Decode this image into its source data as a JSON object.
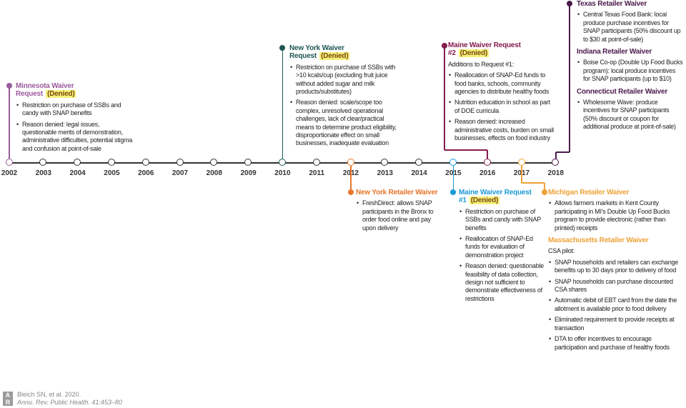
{
  "colors": {
    "minnesota": "#9b5b9e",
    "new_york": "#1e5753",
    "maine2": "#861c4e",
    "texas": "#4b1a4b",
    "ny_retailer": "#e8762b",
    "maine1": "#1b9ad6",
    "michigan": "#eea237",
    "denied_highlight": "#f6f07a"
  },
  "years": [
    "2002",
    "2003",
    "2004",
    "2005",
    "2006",
    "2007",
    "2008",
    "2009",
    "2010",
    "2011",
    "2012",
    "2013",
    "2014",
    "2015",
    "2016",
    "2017",
    "2018"
  ],
  "events": {
    "minnesota": {
      "sections": [
        {
          "title": "Minnesota Waiver Request",
          "denied": "(Denied)",
          "bullets": [
            "Restriction on purchase of SSBs and candy with SNAP benefits",
            "Reason denied: legal issues, questionable merits of demonstration, administrative difficulties, potential stigma and confusion at point-of-sale"
          ]
        }
      ]
    },
    "new_york": {
      "sections": [
        {
          "title": "New York Waiver Request",
          "denied": "(Denied)",
          "bullets": [
            "Restriction on purchase of SSBs with >10 kcals/cup (excluding fruit juice without added sugar and milk products/substitutes)",
            "Reason denied: scale/scope too complex, unresolved operational challenges, lack of clear/practical means to determine product eligibility, disproportionate effect on small businesses, inadequate evaluation"
          ]
        }
      ]
    },
    "maine2": {
      "sections": [
        {
          "title": "Maine Waiver Request #2",
          "denied": "(Denied)",
          "intro": "Additions to Request #1:",
          "bullets": [
            "Reallocation of SNAP-Ed funds to food banks, schools, community agencies to distribute healthy foods",
            "Nutrition education in school as part of DOE curricula",
            "Reason denied: increased administrative costs, burden on small businesses, effects on food industry"
          ]
        }
      ]
    },
    "texas": {
      "sections": [
        {
          "title": "Texas Retailer Waiver",
          "bullets": [
            "Central Texas Food Bank: local produce purchase incentives for SNAP participants (50% discount up to $30 at point-of-sale)"
          ]
        },
        {
          "title": "Indiana Retailer Waiver",
          "bullets": [
            "Boise Co-op (Double Up Food Bucks program): local produce incentives for SNAP participants (up to $10)"
          ]
        },
        {
          "title": "Connecticut Retailer Waiver",
          "bullets": [
            "Wholesome Wave: produce incentives for SNAP participants (50% discount or coupon for additional produce at point-of-sale)"
          ]
        }
      ]
    },
    "ny_retailer": {
      "sections": [
        {
          "title": "New York Retailer Waiver",
          "bullets": [
            "FreshDirect: allows SNAP participants in the Bronx to order food online and pay upon delivery"
          ]
        }
      ]
    },
    "maine1": {
      "sections": [
        {
          "title": "Maine Waiver Request #1",
          "denied": "(Denied)",
          "bullets": [
            "Restriction on purchase of SSBs and candy with SNAP benefits",
            "Reallocation of SNAP-Ed funds for evaluation of demonstration project",
            "Reason denied: questionable feasibility of data collection, design not sufficient to demonstrate effectiveness of restrictions"
          ]
        }
      ]
    },
    "michigan": {
      "sections": [
        {
          "title": "Michigan Retailer Waiver",
          "bullets": [
            "Allows farmers markets in Kent County participating in MI's Double Up Food Bucks program to provide electronic (rather than printed) receipts"
          ]
        },
        {
          "title": "Massachusetts Retailer Waiver",
          "intro": "CSA pilot:",
          "bullets": [
            "SNAP households and retailers can exchange benefits up to 30 days prior to delivery of food",
            "SNAP households can purchase discounted CSA shares",
            "Automatic debit of EBT card from the date the allotment is available prior to food delivery",
            "Eliminated requirement to provide receipts at transaction",
            "DTA to offer incentives to encourage participation and purchase of healthy foods"
          ]
        }
      ]
    }
  },
  "credit": {
    "logo": "AR",
    "line1": "Bleich SN, et al. 2020.",
    "line2": "Annu. Rev. Public Health. 41:453–80"
  }
}
